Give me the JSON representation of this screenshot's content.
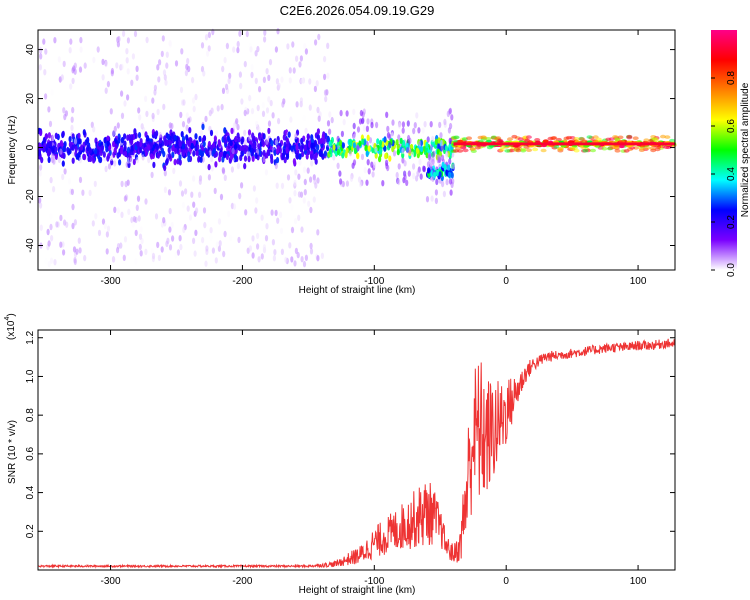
{
  "chart_data": [
    {
      "type": "heatmap",
      "title": "C2E6.2026.054.09.19.G29",
      "xlabel": "Height of straight line (km)",
      "ylabel": "Frequency (Hz)",
      "xlim": [
        -355,
        128
      ],
      "ylim": [
        -50,
        48
      ],
      "x_ticks": [
        -300,
        -200,
        -100,
        0,
        100
      ],
      "x_tick_labels": [
        "-300",
        "-200",
        "-100",
        "0",
        "100"
      ],
      "y_ticks": [
        -40,
        -20,
        0,
        20,
        40
      ],
      "y_tick_labels": [
        "-40",
        "-20",
        "0",
        "20",
        "40"
      ],
      "colorbar": {
        "label": "Normalized spectral amplitude",
        "range": [
          0,
          1
        ],
        "ticks": [
          0.0,
          0.2,
          0.4,
          0.6,
          0.8
        ],
        "tick_labels": [
          "0.0",
          "0.2",
          "0.4",
          "0.6",
          "0.8"
        ],
        "colormap": [
          "#ffffff",
          "#7a00ff",
          "#0000ff",
          "#00ffff",
          "#00ff00",
          "#ffff00",
          "#ff7f00",
          "#ff0000",
          "#ff0088"
        ]
      },
      "regions": [
        {
          "x_range": [
            -355,
            -135
          ],
          "freq_center": 0,
          "core_halfwidth_hz": 10,
          "spread_halfwidth_hz": 48,
          "amplitude": 0.2
        },
        {
          "x_range": [
            -135,
            -40
          ],
          "freq_center": 0,
          "core_halfwidth_hz": 6,
          "spread_halfwidth_hz": 15,
          "amplitude": 0.45
        },
        {
          "x_range": [
            -60,
            -40
          ],
          "freq_center": -10,
          "core_halfwidth_hz": 5,
          "spread_halfwidth_hz": 12,
          "amplitude": 0.35
        },
        {
          "x_range": [
            -40,
            128
          ],
          "freq_center": 1.5,
          "core_halfwidth_hz": 1.5,
          "spread_halfwidth_hz": 3,
          "amplitude": 0.9
        }
      ]
    },
    {
      "type": "line",
      "title": "",
      "xlabel": "Height of straight line (km)",
      "ylabel": "SNR (10 * v/v)",
      "y_multiplier": "(x10",
      "y_multiplier_exp": "4",
      "xlim": [
        -355,
        128
      ],
      "ylim": [
        0,
        1.24
      ],
      "x_ticks": [
        -300,
        -200,
        -100,
        0,
        100
      ],
      "x_tick_labels": [
        "-300",
        "-200",
        "-100",
        "0",
        "100"
      ],
      "y_ticks": [
        0.2,
        0.4,
        0.6,
        0.8,
        1.0,
        1.2
      ],
      "y_tick_labels": [
        "0.2",
        "0.4",
        "0.6",
        "0.8",
        "1.0",
        "1.2"
      ],
      "series": [
        {
          "name": "SNR",
          "color": "#ee3333",
          "x": [
            -355,
            -300,
            -250,
            -200,
            -150,
            -130,
            -110,
            -100,
            -90,
            -80,
            -70,
            -60,
            -55,
            -50,
            -45,
            -40,
            -35,
            -30,
            -25,
            -20,
            -15,
            -10,
            -5,
            0,
            5,
            10,
            15,
            20,
            25,
            30,
            40,
            50,
            60,
            70,
            80,
            90,
            100,
            110,
            120,
            128
          ],
          "y": [
            0.02,
            0.02,
            0.02,
            0.02,
            0.02,
            0.03,
            0.08,
            0.14,
            0.18,
            0.22,
            0.26,
            0.3,
            0.28,
            0.22,
            0.12,
            0.08,
            0.12,
            0.4,
            0.7,
            0.72,
            0.68,
            0.72,
            0.76,
            0.82,
            0.88,
            0.95,
            1.02,
            1.06,
            1.08,
            1.1,
            1.11,
            1.12,
            1.13,
            1.14,
            1.15,
            1.15,
            1.16,
            1.16,
            1.17,
            1.17
          ],
          "noise": [
            0.005,
            0.005,
            0.005,
            0.005,
            0.005,
            0.015,
            0.05,
            0.08,
            0.1,
            0.12,
            0.15,
            0.18,
            0.15,
            0.1,
            0.06,
            0.05,
            0.08,
            0.3,
            0.35,
            0.4,
            0.32,
            0.28,
            0.22,
            0.18,
            0.12,
            0.08,
            0.05,
            0.04,
            0.03,
            0.03,
            0.025,
            0.025,
            0.025,
            0.025,
            0.025,
            0.025,
            0.025,
            0.025,
            0.025,
            0.025
          ]
        }
      ]
    }
  ]
}
